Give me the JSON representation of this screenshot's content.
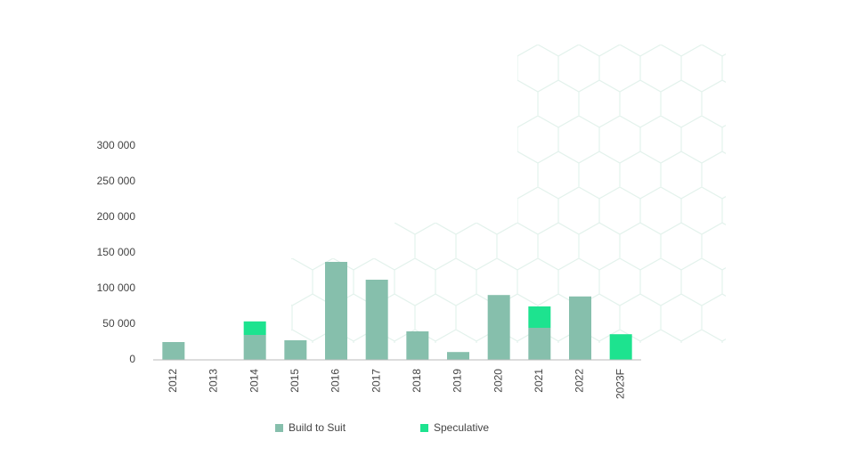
{
  "chart_data": {
    "type": "bar",
    "stacked": true,
    "categories": [
      "2012",
      "2013",
      "2014",
      "2015",
      "2016",
      "2017",
      "2018",
      "2019",
      "2020",
      "2021",
      "2022",
      "2023F"
    ],
    "series": [
      {
        "name": "Build to Suit",
        "color": "#86bfac",
        "values": [
          25000,
          0,
          35000,
          27500,
          137500,
          112500,
          40000,
          11000,
          91000,
          45000,
          89000,
          0
        ]
      },
      {
        "name": "Speculative",
        "color": "#1de38f",
        "values": [
          0,
          0,
          19000,
          0,
          0,
          0,
          0,
          0,
          0,
          30000,
          0,
          36000
        ]
      }
    ],
    "ylim": [
      0,
      300000
    ],
    "yticks": [
      0,
      {
        "value": 50000,
        "label": "50 000"
      },
      {
        "value": 100000,
        "label": "100 000"
      },
      {
        "value": 150000,
        "label": "150 000"
      },
      {
        "value": 200000,
        "label": "200 000"
      },
      {
        "value": 250000,
        "label": "250 000"
      },
      {
        "value": 300000,
        "label": "300 000"
      }
    ],
    "grid": false
  }
}
